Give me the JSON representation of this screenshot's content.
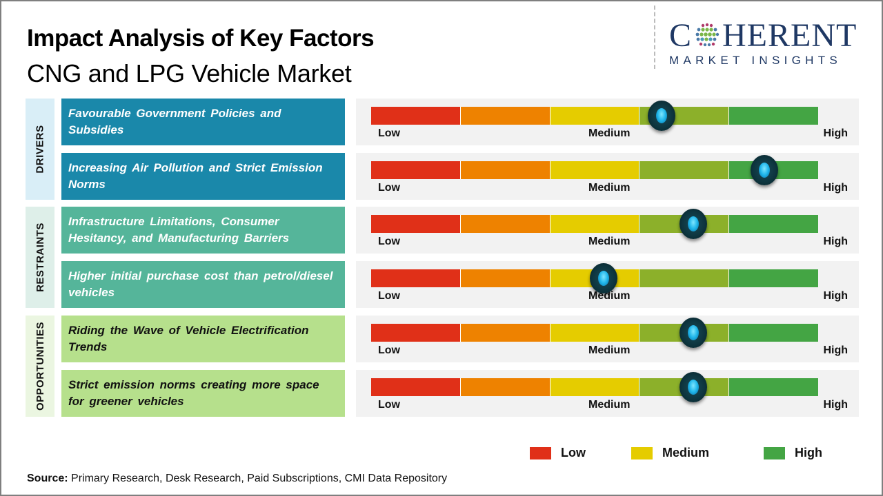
{
  "header": {
    "title": "Impact Analysis of Key Factors",
    "subtitle": "CNG and LPG Vehicle Market"
  },
  "logo": {
    "main_left": "C",
    "main_right": "HERENT",
    "sub": "MARKET INSIGHTS",
    "icon": "globe-dots-icon"
  },
  "colors": {
    "segments": [
      "#e03018",
      "#ee8200",
      "#e5cc00",
      "#8cb02a",
      "#44a544"
    ],
    "drivers_box": "#1a88aa",
    "drivers_cat": "#d9eef7",
    "restraints_box": "#55b59a",
    "restraints_cat": "#deefe9",
    "opportunities_box": "#b6e08c",
    "opportunities_cat": "#ebf6e1",
    "knob": "#0e3640"
  },
  "gauge_labels": {
    "low": "Low",
    "medium": "Medium",
    "high": "High"
  },
  "chart_data": {
    "type": "table",
    "title": "Impact Analysis of Key Factors - CNG and LPG Vehicle Market",
    "scale": [
      "Low",
      "Medium",
      "High"
    ],
    "scale_range": [
      0,
      1
    ],
    "categories": [
      {
        "name": "DRIVERS",
        "factors": [
          {
            "label": "Favourable Government Policies and Subsidies",
            "impact": 0.65
          },
          {
            "label": "Increasing Air Pollution and Strict Emission Norms",
            "impact": 0.88
          }
        ]
      },
      {
        "name": "RESTRAINTS",
        "factors": [
          {
            "label": "Infrastructure Limitations, Consumer Hesitancy, and Manufacturing Barriers",
            "impact": 0.72
          },
          {
            "label": "Higher initial purchase cost than petrol/diesel vehicles",
            "impact": 0.52
          }
        ]
      },
      {
        "name": "OPPORTUNITIES",
        "factors": [
          {
            "label": "Riding the Wave of Vehicle Electrification Trends",
            "impact": 0.72
          },
          {
            "label": "Strict emission norms creating more space for greener vehicles",
            "impact": 0.72
          }
        ]
      }
    ],
    "legend": [
      {
        "label": "Low",
        "color": "#e03018"
      },
      {
        "label": "Medium",
        "color": "#e5cc00"
      },
      {
        "label": "High",
        "color": "#44a544"
      }
    ],
    "legend_position": "bottom-right"
  },
  "footer": {
    "source_label": "Source:",
    "source_text": " Primary Research, Desk Research, Paid Subscriptions, CMI Data Repository"
  }
}
